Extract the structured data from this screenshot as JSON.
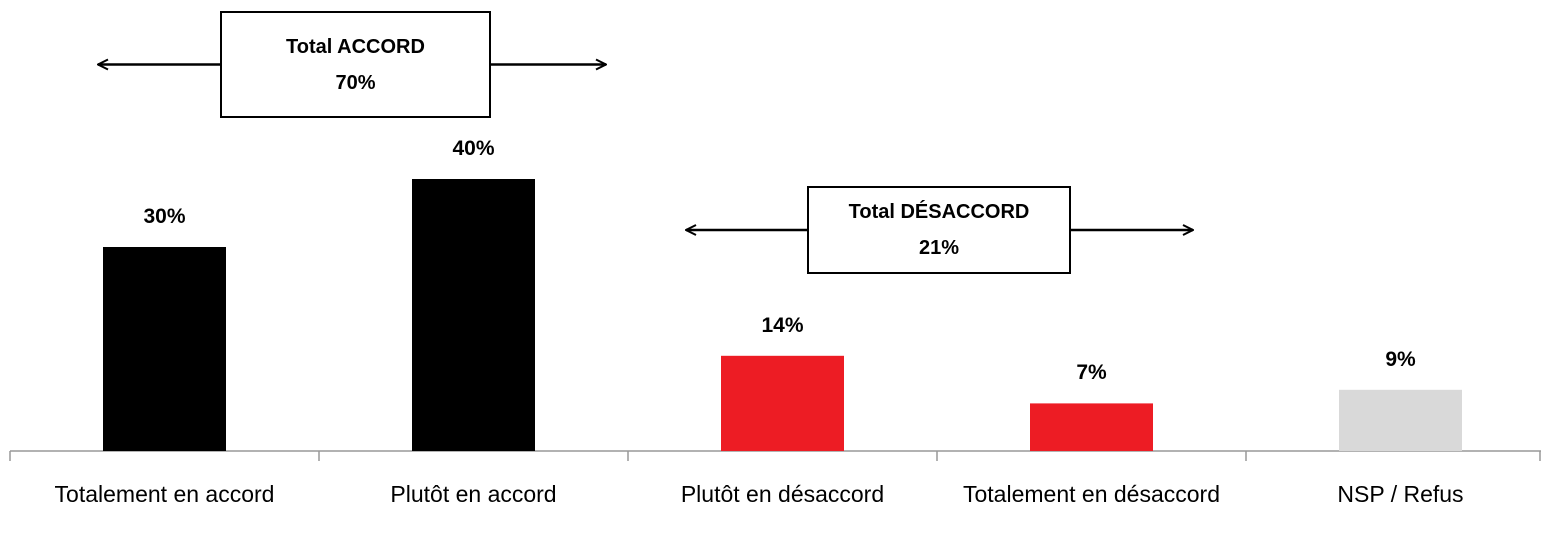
{
  "chart_data": {
    "type": "bar",
    "categories": [
      "Totalement en accord",
      "Plutôt en accord",
      "Plutôt en désaccord",
      "Totalement en désaccord",
      "NSP / Refus"
    ],
    "values": [
      30,
      40,
      14,
      7,
      9
    ],
    "value_labels": [
      "30%",
      "40%",
      "14%",
      "7%",
      "9%"
    ],
    "colors": [
      "#000000",
      "#000000",
      "#ed1c24",
      "#ed1c24",
      "#d9d9d9"
    ],
    "annotations": [
      {
        "lines": [
          "Total ACCORD",
          "70%"
        ]
      },
      {
        "lines": [
          "Total DÉSACCORD",
          "21%"
        ]
      }
    ]
  }
}
